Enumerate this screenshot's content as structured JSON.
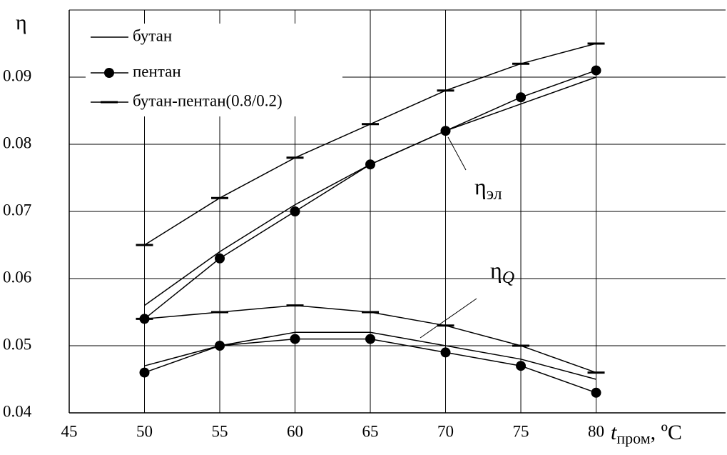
{
  "chart_data": {
    "type": "line",
    "y_label": "η",
    "x_label": {
      "main": "t",
      "sub": "пром",
      "unit": ", ºC"
    },
    "x": [
      50,
      55,
      60,
      65,
      70,
      75,
      80
    ],
    "xlim": [
      45,
      88.6
    ],
    "xticks": [
      45,
      50,
      55,
      60,
      65,
      70,
      75,
      80
    ],
    "ylim": [
      0.04,
      0.1
    ],
    "yticks": [
      0.04,
      0.05,
      0.06,
      0.07,
      0.08,
      0.09
    ],
    "grid": true,
    "legend": "upper left",
    "series": [
      {
        "name": "бутан",
        "color": "#000000",
        "marker": "none",
        "eta_el": [
          0.056,
          0.064,
          0.071,
          0.077,
          0.082,
          0.086,
          0.09
        ],
        "eta_q": [
          0.047,
          0.05,
          0.052,
          0.052,
          0.05,
          0.048,
          0.045
        ]
      },
      {
        "name": "пентан",
        "color": "#000000",
        "marker": "circle",
        "eta_el": [
          0.054,
          0.063,
          0.07,
          0.077,
          0.082,
          0.087,
          0.091
        ],
        "eta_q": [
          0.046,
          0.05,
          0.051,
          0.051,
          0.049,
          0.047,
          0.043
        ]
      },
      {
        "name": "бутан-пентан(0.8/0.2)",
        "color": "#000000",
        "marker": "dash",
        "eta_el": [
          0.065,
          0.072,
          0.078,
          0.083,
          0.088,
          0.092,
          0.095
        ],
        "eta_q": [
          0.054,
          0.055,
          0.056,
          0.055,
          0.053,
          0.05,
          0.046
        ]
      }
    ],
    "annotations": [
      {
        "symbol": "η",
        "sub": "эл"
      },
      {
        "symbol": "η",
        "sub": "Q"
      }
    ]
  }
}
